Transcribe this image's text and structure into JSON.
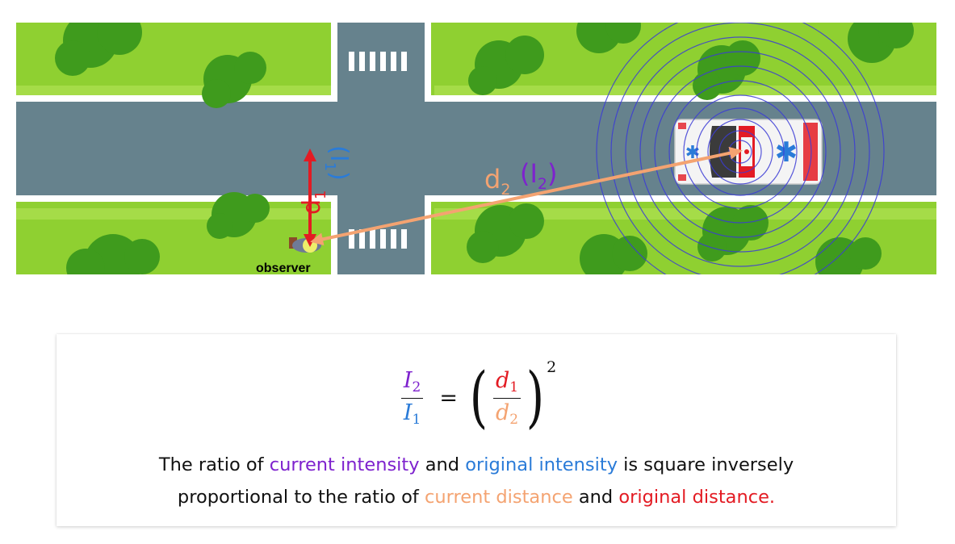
{
  "scene": {
    "observer_label": "observer",
    "label_d1": "d",
    "label_d1_sub": "1",
    "label_i1_open": "(I",
    "label_i1_sub": "1",
    "label_i1_close": ")",
    "label_d2": "d",
    "label_d2_sub": "2",
    "label_i2_open": "(I",
    "label_i2_sub": "2",
    "label_i2_close": ")"
  },
  "formula": {
    "lhs_num": "I",
    "lhs_num_sub": "2",
    "lhs_den": "I",
    "lhs_den_sub": "1",
    "equals": "=",
    "rhs_num": "d",
    "rhs_num_sub": "1",
    "rhs_den": "d",
    "rhs_den_sub": "2",
    "exponent": "2"
  },
  "description": {
    "line1_a": "The ratio of ",
    "line1_b": "current intensity",
    "line1_c": " and ",
    "line1_d": "original intensity",
    "line1_e": " is square inversely",
    "line2_a": "proportional to the ratio of ",
    "line2_b": "current distance",
    "line2_c": " and ",
    "line2_d": "original distance."
  },
  "colors": {
    "grass": "#8fd031",
    "road": "#66828d",
    "tree": "#3f9b1d",
    "current": "#7e22ce",
    "original": "#2a7bd8",
    "current_distance": "#f4a371",
    "original_distance": "#e31b23",
    "sound_waves": "#3b3bd6"
  }
}
